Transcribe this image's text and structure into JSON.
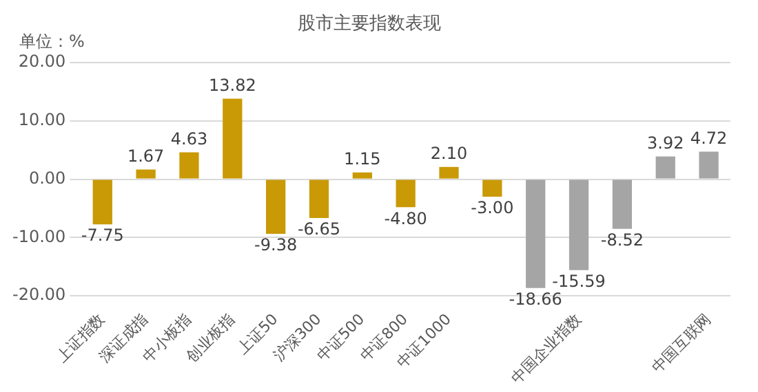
{
  "chart_data": {
    "type": "bar",
    "title": "股市主要指数表现",
    "ylabel": "单位：%",
    "categories": [
      "上证指数",
      "深证成指",
      "中小板指",
      "创业板指",
      "上证50",
      "沪深300",
      "中证500",
      "中证800",
      "中证1000",
      null,
      null,
      "中国企业指数",
      null,
      null,
      "中国互联网"
    ],
    "values": [
      -7.75,
      1.67,
      4.63,
      13.82,
      -9.38,
      -6.65,
      1.15,
      -4.8,
      2.1,
      -3.0,
      -18.66,
      -15.59,
      -8.52,
      3.92,
      4.72
    ],
    "value_labels": [
      "-7.75",
      "1.67",
      "4.63",
      "13.82",
      "-9.38",
      "-6.65",
      "1.15",
      "-4.80",
      "2.10",
      "-3.00",
      "-18.66",
      "-15.59",
      "-8.52",
      "3.92",
      "4.72"
    ],
    "colors": [
      "#c99a06",
      "#c99a06",
      "#c99a06",
      "#c99a06",
      "#c99a06",
      "#c99a06",
      "#c99a06",
      "#c99a06",
      "#c99a06",
      "#c99a06",
      "#a5a5a5",
      "#a5a5a5",
      "#a5a5a5",
      "#a5a5a5",
      "#a5a5a5"
    ],
    "ylim": [
      -20,
      20
    ],
    "yticks": [
      {
        "value": -20,
        "label": "-20.00"
      },
      {
        "value": -10,
        "label": "-10.00"
      },
      {
        "value": 0,
        "label": "0.00"
      },
      {
        "value": 10,
        "label": "10.00"
      },
      {
        "value": 20,
        "label": "20.00"
      }
    ],
    "grid": "y"
  }
}
